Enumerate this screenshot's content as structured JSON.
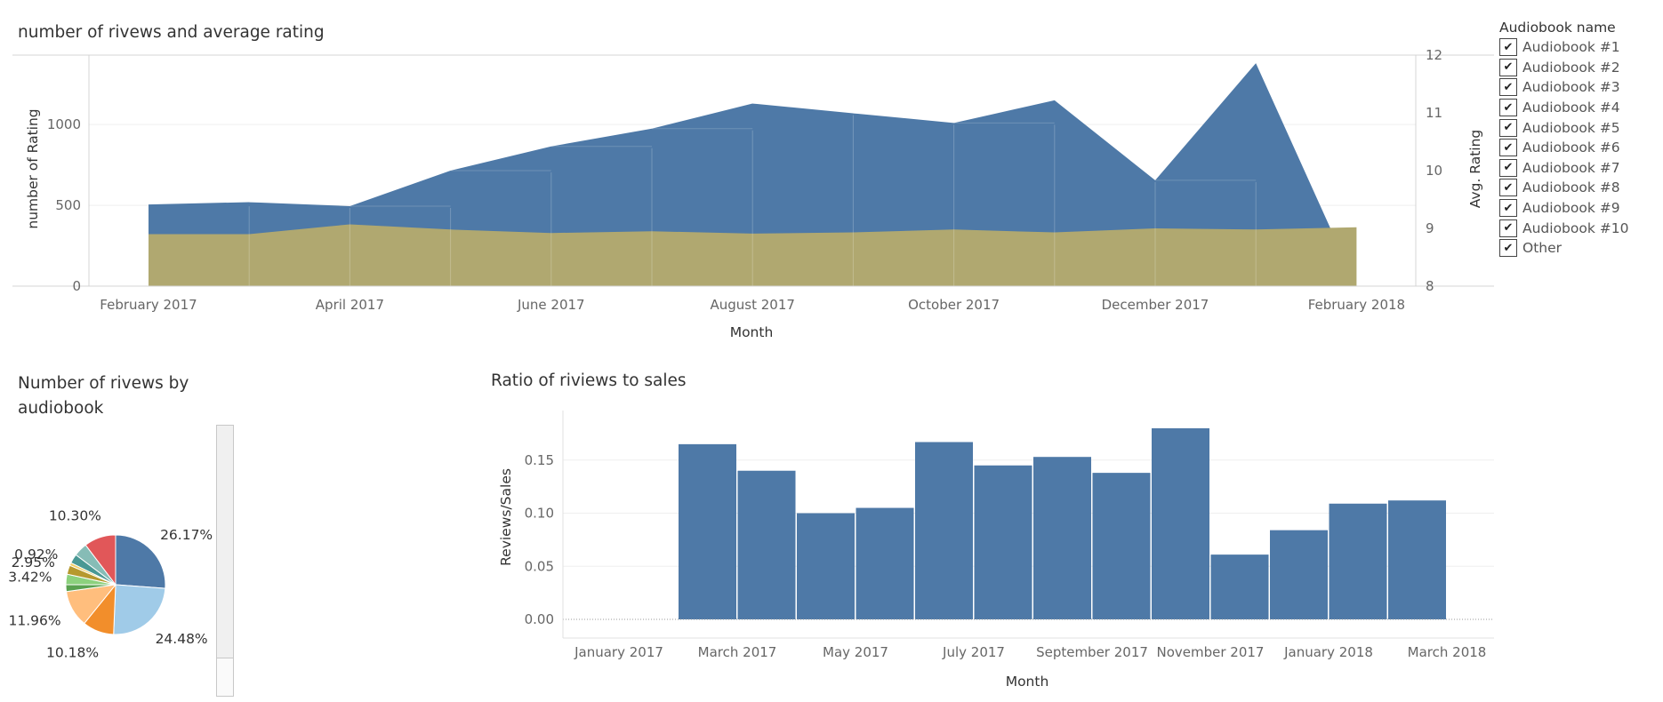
{
  "legend": {
    "title": "Audiobook name",
    "items": [
      "Audiobook #1",
      "Audiobook #2",
      "Audiobook #3",
      "Audiobook #4",
      "Audiobook #5",
      "Audiobook #6",
      "Audiobook #7",
      "Audiobook #8",
      "Audiobook #9",
      "Audiobook #10",
      "Other"
    ],
    "check_glyph": "✔"
  },
  "colors": {
    "reviews_area": "#4e79a7",
    "rating_area": "#b0a870",
    "bars": "#4e79a7",
    "pie": [
      "#4e79a7",
      "#a0cbe8",
      "#f28e2b",
      "#ffbe7d",
      "#59a14f",
      "#8cd17d",
      "#b6992d",
      "#f1ce63",
      "#499894",
      "#86bcb6",
      "#e15759"
    ]
  },
  "chart_data": [
    {
      "type": "area",
      "title": "number of rivews and average rating",
      "xlabel": "Month",
      "ylabel": "number of Rating",
      "y2label": "Avg. Rating",
      "x": [
        "2017-02",
        "2017-03",
        "2017-04",
        "2017-05",
        "2017-06",
        "2017-07",
        "2017-08",
        "2017-09",
        "2017-10",
        "2017-11",
        "2017-12",
        "2018-01",
        "2018-02"
      ],
      "x_tick_labels": [
        "February 2017",
        "April 2017",
        "June 2017",
        "August 2017",
        "October 2017",
        "December 2017",
        "February 2018"
      ],
      "x_tick_values": [
        "2017-02",
        "2017-04",
        "2017-06",
        "2017-08",
        "2017-10",
        "2017-12",
        "2018-02"
      ],
      "ylim": [
        0,
        1430
      ],
      "y_ticks": [
        0,
        500,
        1000
      ],
      "y2lim": [
        8,
        12
      ],
      "y2_ticks": [
        8,
        9,
        10,
        11,
        12
      ],
      "series": [
        {
          "name": "number of Rating",
          "axis": "left",
          "values": [
            505,
            520,
            495,
            715,
            865,
            975,
            1130,
            1070,
            1010,
            1150,
            655,
            1380,
            0
          ]
        },
        {
          "name": "Avg. Rating",
          "axis": "right",
          "values": [
            8.9,
            8.9,
            9.07,
            8.98,
            8.92,
            8.95,
            8.91,
            8.93,
            8.98,
            8.93,
            9.0,
            8.98,
            9.02
          ]
        }
      ],
      "grid": true
    },
    {
      "type": "pie",
      "title": "Number of rivews by audiobook",
      "slices": [
        {
          "value": 26.17,
          "label": "26.17%"
        },
        {
          "value": 24.48,
          "label": "24.48%"
        },
        {
          "value": 10.18,
          "label": "10.18%"
        },
        {
          "value": 11.96,
          "label": "11.96%"
        },
        {
          "value": 2.2,
          "label": ""
        },
        {
          "value": 3.42,
          "label": "3.42%"
        },
        {
          "value": 2.95,
          "label": "2.95%"
        },
        {
          "value": 0.92,
          "label": "0.92%"
        },
        {
          "value": 3.0,
          "label": ""
        },
        {
          "value": 4.42,
          "label": ""
        },
        {
          "value": 10.3,
          "label": "10.30%"
        }
      ]
    },
    {
      "type": "bar",
      "title": "Ratio of riviews to sales",
      "xlabel": "Month",
      "ylabel": "Reviews/Sales",
      "categories": [
        "2017-03",
        "2017-04",
        "2017-05",
        "2017-06",
        "2017-07",
        "2017-08",
        "2017-09",
        "2017-10",
        "2017-11",
        "2017-12",
        "2018-01",
        "2018-02",
        "2018-03"
      ],
      "values": [
        0.165,
        0.14,
        0.1,
        0.105,
        0.167,
        0.145,
        0.153,
        0.138,
        0.18,
        0.061,
        0.084,
        0.109,
        0.112
      ],
      "x_tick_labels": [
        "January 2017",
        "March 2017",
        "May 2017",
        "July 2017",
        "September 2017",
        "November 2017",
        "January 2018",
        "March 2018"
      ],
      "ylim": [
        0,
        0.19
      ],
      "y_ticks": [
        "0.00",
        "0.05",
        "0.10",
        "0.15"
      ],
      "grid": true
    }
  ]
}
